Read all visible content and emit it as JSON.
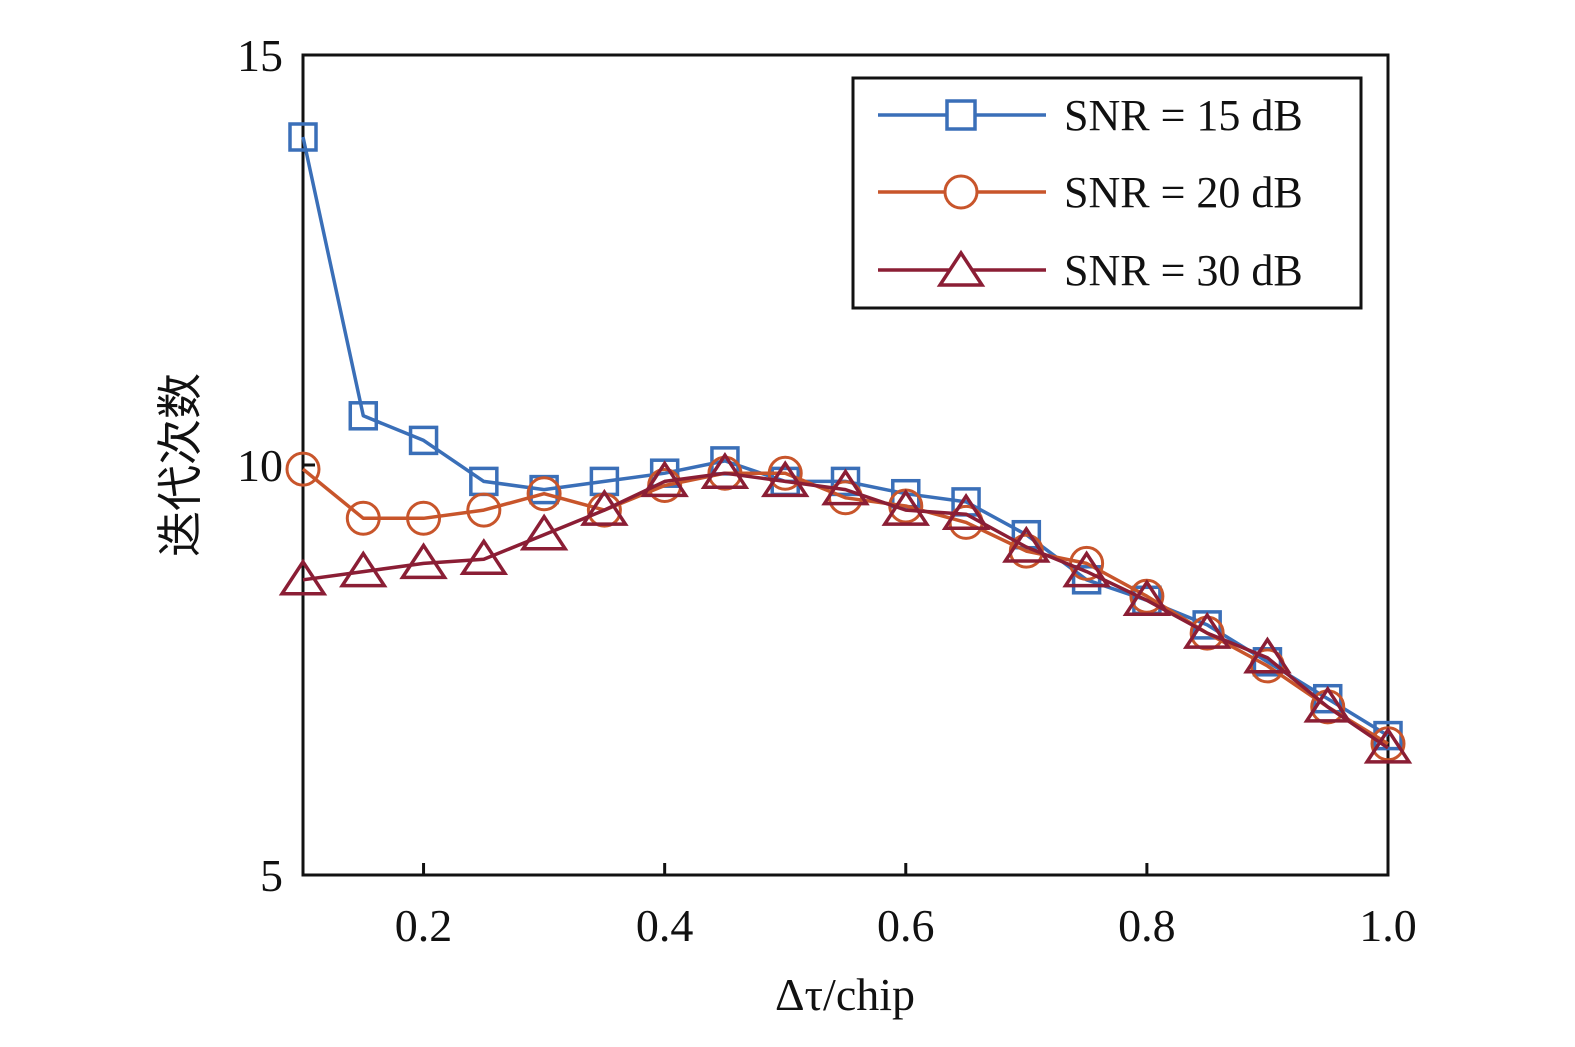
{
  "chart_data": {
    "type": "line",
    "title": "",
    "xlabel": "Δτ/chip",
    "ylabel": "迭代次数",
    "xlim": [
      0.1,
      1.0
    ],
    "ylim": [
      5,
      15
    ],
    "x": [
      0.1,
      0.15,
      0.2,
      0.25,
      0.3,
      0.35,
      0.4,
      0.45,
      0.5,
      0.55,
      0.6,
      0.65,
      0.7,
      0.75,
      0.8,
      0.85,
      0.9,
      0.95,
      1.0
    ],
    "xticks": [
      {
        "value": 0.2,
        "label": "0.2"
      },
      {
        "value": 0.4,
        "label": "0.4"
      },
      {
        "value": 0.6,
        "label": "0.6"
      },
      {
        "value": 0.8,
        "label": "0.8"
      },
      {
        "value": 1.0,
        "label": "1.0"
      }
    ],
    "yticks": [
      {
        "value": 5,
        "label": "5"
      },
      {
        "value": 10,
        "label": "10"
      },
      {
        "value": 15,
        "label": "15"
      }
    ],
    "grid": false,
    "legend_position": "top-right",
    "series": [
      {
        "name": "SNR = 15 dB",
        "color": "#3a6fb8",
        "marker": "square",
        "values": [
          14.0,
          10.6,
          10.3,
          9.8,
          9.7,
          9.8,
          9.9,
          10.05,
          9.8,
          9.8,
          9.65,
          9.55,
          9.15,
          8.6,
          8.35,
          8.05,
          7.6,
          7.15,
          6.7
        ]
      },
      {
        "name": "SNR = 20 dB",
        "color": "#c8552b",
        "marker": "circle",
        "values": [
          9.95,
          9.35,
          9.35,
          9.45,
          9.65,
          9.45,
          9.75,
          9.9,
          9.9,
          9.6,
          9.5,
          9.3,
          8.95,
          8.8,
          8.4,
          7.95,
          7.55,
          7.05,
          6.6
        ]
      },
      {
        "name": "SNR = 30 dB",
        "color": "#8b1e35",
        "marker": "triangle",
        "values": [
          8.6,
          8.7,
          8.8,
          8.85,
          9.15,
          9.45,
          9.8,
          9.9,
          9.8,
          9.7,
          9.45,
          9.4,
          9.0,
          8.7,
          8.35,
          7.95,
          7.65,
          7.05,
          6.55
        ]
      }
    ]
  }
}
